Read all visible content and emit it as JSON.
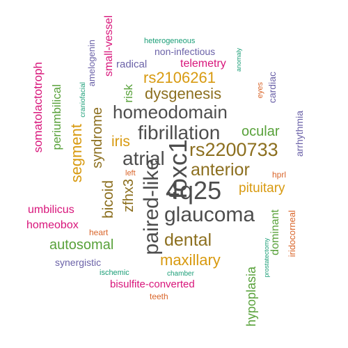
{
  "title": "",
  "colors": {
    "gray": "#4d4d4d",
    "brown": "#8c6f1f",
    "gold": "#d89a10",
    "green": "#58a13a",
    "magenta": "#d8147a",
    "purple": "#6b62a8",
    "orange": "#d9652a",
    "teal": "#1b9e77"
  },
  "words": [
    {
      "id": "4q25",
      "text": "4q25",
      "color": "gray"
    },
    {
      "id": "foxc1",
      "text": "foxc1",
      "color": "gray"
    },
    {
      "id": "paired-like",
      "text": "paired-like",
      "color": "gray"
    },
    {
      "id": "glaucoma",
      "text": "glaucoma",
      "color": "gray"
    },
    {
      "id": "fibrillation",
      "text": "fibrillation",
      "color": "gray"
    },
    {
      "id": "homeodomain",
      "text": "homeodomain",
      "color": "gray"
    },
    {
      "id": "atrial",
      "text": "atrial",
      "color": "gray"
    },
    {
      "id": "rs2200733",
      "text": "rs2200733",
      "color": "brown"
    },
    {
      "id": "anterior",
      "text": "anterior",
      "color": "brown"
    },
    {
      "id": "dental",
      "text": "dental",
      "color": "brown"
    },
    {
      "id": "dysgenesis",
      "text": "dysgenesis",
      "color": "brown"
    },
    {
      "id": "rs2106261",
      "text": "rs2106261",
      "color": "gold"
    },
    {
      "id": "maxillary",
      "text": "maxillary",
      "color": "gold"
    },
    {
      "id": "pituitary",
      "text": "pituitary",
      "color": "gold"
    },
    {
      "id": "iris",
      "text": "iris",
      "color": "gold"
    },
    {
      "id": "segment",
      "text": "segment",
      "color": "gold"
    },
    {
      "id": "syndrome",
      "text": "syndrome",
      "color": "brown"
    },
    {
      "id": "bicoid",
      "text": "bicoid",
      "color": "brown"
    },
    {
      "id": "zfhx3",
      "text": "zfhx3",
      "color": "brown"
    },
    {
      "id": "ocular",
      "text": "ocular",
      "color": "green"
    },
    {
      "id": "autosomal",
      "text": "autosomal",
      "color": "green"
    },
    {
      "id": "hypoplasia",
      "text": "hypoplasia",
      "color": "green"
    },
    {
      "id": "dominant",
      "text": "dominant",
      "color": "green"
    },
    {
      "id": "risk",
      "text": "risk",
      "color": "green"
    },
    {
      "id": "periumbilical",
      "text": "periumbilical",
      "color": "green"
    },
    {
      "id": "somatolactotroph",
      "text": "somatolactotroph",
      "color": "magenta"
    },
    {
      "id": "umbilicus",
      "text": "umbilicus",
      "color": "magenta"
    },
    {
      "id": "homeobox",
      "text": "homeobox",
      "color": "magenta"
    },
    {
      "id": "telemetry",
      "text": "telemetry",
      "color": "magenta"
    },
    {
      "id": "small-vessel",
      "text": "small-vessel",
      "color": "magenta"
    },
    {
      "id": "bisulfite-converted",
      "text": "bisulfite-converted",
      "color": "magenta"
    },
    {
      "id": "radical",
      "text": "radical",
      "color": "purple"
    },
    {
      "id": "non-infectious",
      "text": "non-infectious",
      "color": "purple"
    },
    {
      "id": "amelogenin",
      "text": "amelogenin",
      "color": "purple"
    },
    {
      "id": "arrhythmia",
      "text": "arrhythmia",
      "color": "purple"
    },
    {
      "id": "cardiac",
      "text": "cardiac",
      "color": "purple"
    },
    {
      "id": "synergistic",
      "text": "synergistic",
      "color": "purple"
    },
    {
      "id": "iridocorneal",
      "text": "iridocorneal",
      "color": "orange"
    },
    {
      "id": "hprl",
      "text": "hprl",
      "color": "orange"
    },
    {
      "id": "left",
      "text": "left",
      "color": "orange"
    },
    {
      "id": "heart",
      "text": "heart",
      "color": "orange"
    },
    {
      "id": "eyes",
      "text": "eyes",
      "color": "orange"
    },
    {
      "id": "teeth",
      "text": "teeth",
      "color": "orange"
    },
    {
      "id": "heterogeneous",
      "text": "heterogeneous",
      "color": "teal"
    },
    {
      "id": "anomaly",
      "text": "anomaly",
      "color": "teal"
    },
    {
      "id": "craniofacial",
      "text": "craniofacial",
      "color": "teal"
    },
    {
      "id": "prostatectomy",
      "text": "prostatectomy",
      "color": "teal"
    },
    {
      "id": "chamber",
      "text": "chamber",
      "color": "teal"
    },
    {
      "id": "ischemic",
      "text": "ischemic",
      "color": "teal"
    }
  ]
}
